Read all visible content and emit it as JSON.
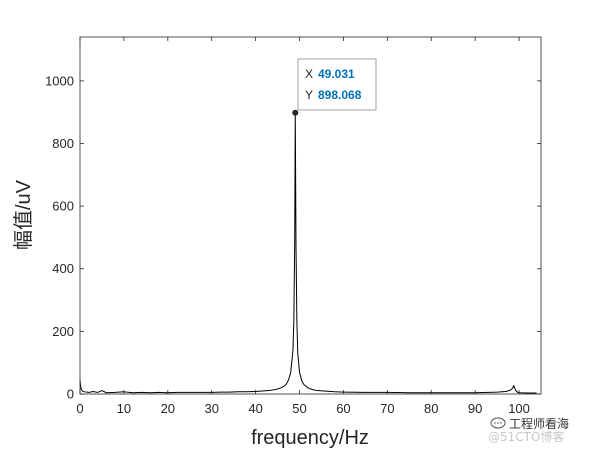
{
  "chart_data": {
    "type": "line",
    "title": "",
    "xlabel": "frequency/Hz",
    "ylabel": "幅值/uV",
    "xlim": [
      0,
      105
    ],
    "ylim": [
      0,
      1140
    ],
    "xticks": [
      0,
      10,
      20,
      30,
      40,
      50,
      60,
      70,
      80,
      90,
      100
    ],
    "yticks": [
      0,
      200,
      400,
      600,
      800,
      1000
    ],
    "grid": false,
    "legend": "none",
    "line_color": "#000000",
    "series": [
      {
        "x": [
          0,
          0.1,
          0.3,
          0.6,
          1,
          2,
          3,
          4,
          5,
          6,
          8,
          10,
          12,
          14,
          16,
          18,
          20,
          22,
          24,
          26,
          28,
          30,
          32,
          34,
          36,
          38,
          40,
          41,
          42,
          43,
          44,
          45,
          46,
          46.5,
          47,
          47.5,
          48,
          48.5,
          48.7,
          48.9,
          49.031,
          49.2,
          49.4,
          49.6,
          50,
          50.5,
          51,
          52,
          53,
          54,
          56,
          58,
          60,
          65,
          70,
          75,
          80,
          85,
          90,
          95,
          97,
          98,
          98.5,
          98.8,
          99.2,
          99.6,
          100,
          102,
          104
        ],
        "y": [
          45,
          28,
          14,
          9,
          7,
          5,
          8,
          5,
          11,
          4,
          5,
          7,
          4,
          5,
          4,
          5,
          4,
          5,
          5,
          5,
          5,
          5,
          6,
          6,
          7,
          7,
          8,
          9,
          10,
          11,
          13,
          16,
          21,
          25,
          32,
          45,
          70,
          140,
          230,
          480,
          898.068,
          470,
          230,
          130,
          70,
          42,
          30,
          19,
          14,
          11,
          9,
          7,
          6,
          5,
          5,
          4,
          4,
          4,
          4,
          6,
          8,
          12,
          18,
          27,
          12,
          6,
          4,
          3,
          3
        ]
      }
    ],
    "datatip": {
      "x_key": "X",
      "x_value": "49.031",
      "y_key": "Y",
      "y_value": "898.068",
      "point": [
        49.031,
        898.068
      ]
    }
  },
  "watermark": {
    "line1": "工程师看海",
    "line2": "@51CTO博客"
  },
  "colors": {
    "axis": "#262626",
    "line": "#000000",
    "datatip_value": "#0072BD",
    "datatip_border": "#a0a0a0"
  }
}
